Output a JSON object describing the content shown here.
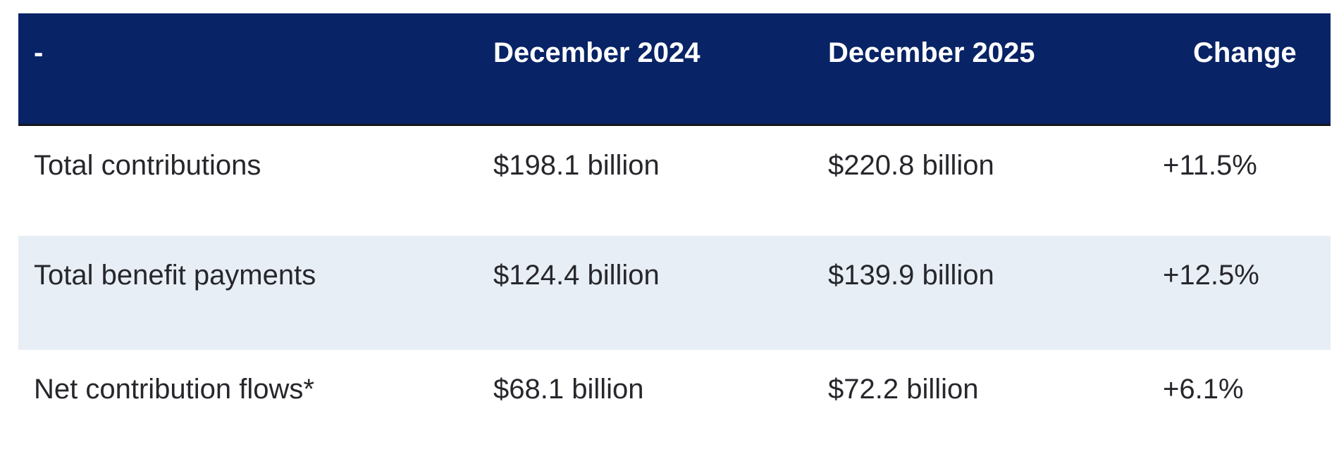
{
  "chart_data": {
    "type": "table",
    "columns": [
      "-",
      "December 2024",
      "December 2025",
      "Change"
    ],
    "rows": [
      [
        "Total contributions",
        "$198.1 billion",
        "$220.8 billion",
        "+11.5%"
      ],
      [
        "Total benefit payments",
        "$124.4 billion",
        "$139.9 billion",
        "+12.5%"
      ],
      [
        "Net contribution flows*",
        "$68.1 billion",
        "$72.2 billion",
        "+6.1%"
      ]
    ],
    "layout": {
      "header_position": "top",
      "striped": true,
      "alt_row_index": 1
    },
    "colors": {
      "header_bg": "#082366",
      "header_text": "#ffffff",
      "header_border_bottom": "#15151d",
      "alt_row_bg": "#e8eef5",
      "body_text": "#26272c",
      "page_bg": "#ffffff"
    }
  }
}
